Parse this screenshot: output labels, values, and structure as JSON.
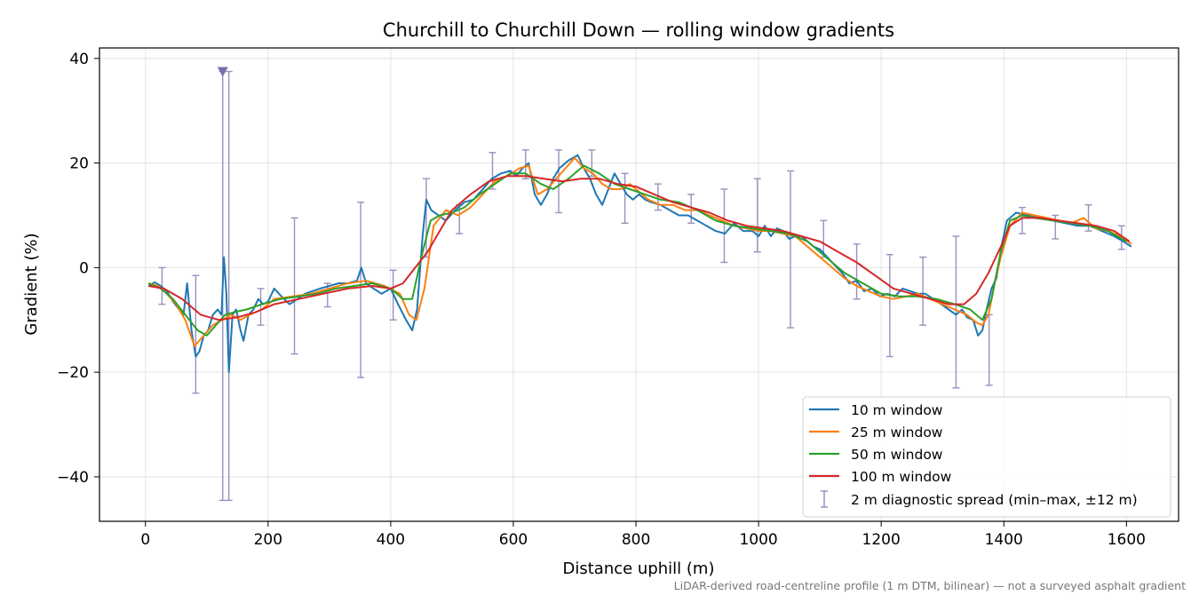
{
  "footnote": "LiDAR-derived road-centreline profile (1 m DTM, bilinear) — not a surveyed asphalt gradient",
  "colors": {
    "s10": "#1f77b4",
    "s25": "#ff7f0e",
    "s50": "#2ca02c",
    "s100": "#d62728",
    "diag": "#9b8fbe",
    "marker": "#7e6baa"
  },
  "chart_data": {
    "type": "line",
    "title": "Churchill to Churchill Down — rolling window gradients",
    "xlabel": "Distance uphill (m)",
    "ylabel": "Gradient (%)",
    "xlim": [
      -75,
      1685
    ],
    "ylim": [
      -48.5,
      42
    ],
    "xticks": [
      0,
      200,
      400,
      600,
      800,
      1000,
      1200,
      1400,
      1600
    ],
    "yticks": [
      -40,
      -20,
      0,
      20,
      40
    ],
    "grid": true,
    "legend_position": "lower-right",
    "series": [
      {
        "name": "10 m window",
        "key": "s10",
        "x": [
          5,
          15,
          25,
          35,
          45,
          55,
          62,
          68,
          75,
          82,
          88,
          95,
          102,
          110,
          118,
          124,
          128,
          132,
          136,
          142,
          148,
          155,
          160,
          168,
          176,
          184,
          192,
          200,
          210,
          222,
          235,
          248,
          260,
          272,
          285,
          300,
          315,
          330,
          345,
          352,
          360,
          372,
          385,
          400,
          412,
          425,
          435,
          443,
          452,
          458,
          466,
          478,
          490,
          505,
          520,
          535,
          550,
          565,
          580,
          595,
          605,
          615,
          625,
          635,
          645,
          655,
          665,
          675,
          690,
          705,
          715,
          725,
          735,
          745,
          755,
          765,
          775,
          785,
          795,
          805,
          815,
          825,
          840,
          855,
          870,
          885,
          900,
          915,
          930,
          945,
          960,
          975,
          990,
          1000,
          1010,
          1020,
          1030,
          1040,
          1050,
          1060,
          1070,
          1080,
          1090,
          1100,
          1112,
          1124,
          1136,
          1148,
          1160,
          1172,
          1185,
          1198,
          1210,
          1222,
          1235,
          1248,
          1260,
          1272,
          1285,
          1298,
          1310,
          1322,
          1332,
          1340,
          1350,
          1358,
          1365,
          1372,
          1380,
          1388,
          1396,
          1405,
          1420,
          1440,
          1460,
          1480,
          1500,
          1520,
          1540,
          1560,
          1580,
          1595,
          1608
        ],
        "y": [
          -3.5,
          -2.8,
          -3.5,
          -4.5,
          -6.5,
          -8,
          -9,
          -3,
          -12,
          -17,
          -16,
          -13,
          -12,
          -9,
          -8,
          -9,
          2,
          -5,
          -20,
          -9,
          -8,
          -12,
          -14,
          -9,
          -8,
          -6,
          -7,
          -6.5,
          -4,
          -5.5,
          -7,
          -6,
          -5,
          -4.5,
          -4,
          -3.5,
          -3,
          -3,
          -2.5,
          0,
          -3,
          -4,
          -5,
          -4,
          -7,
          -10,
          -12,
          -8,
          6,
          13,
          11,
          10,
          9,
          11,
          12.5,
          13,
          15,
          17,
          18,
          18.5,
          17.5,
          19,
          20,
          14,
          12,
          14,
          17,
          19,
          20.5,
          21.5,
          19,
          17,
          14,
          12,
          15,
          18,
          16,
          14,
          13,
          14,
          13,
          12.5,
          12,
          11,
          10,
          10,
          9,
          8,
          7,
          6.5,
          8.5,
          7,
          7,
          6,
          8,
          6,
          7.5,
          7,
          5.5,
          6,
          6,
          5,
          4,
          3.5,
          2,
          0.5,
          -1,
          -3,
          -2.5,
          -4.5,
          -4,
          -5.5,
          -5,
          -5.5,
          -4,
          -4.5,
          -5,
          -5,
          -6,
          -7,
          -8,
          -9,
          -8,
          -9.5,
          -10,
          -13,
          -12,
          -8,
          -4,
          -2,
          4,
          9,
          10.5,
          10,
          9.5,
          9,
          8.5,
          8,
          8,
          7,
          6,
          5,
          4
        ],
        "values": [
          -3.5,
          -2.8,
          -3.5,
          -4.5,
          -6.5,
          -8,
          -9,
          -3,
          -12,
          -17,
          -16,
          -13,
          -12,
          -9,
          -8,
          -9,
          2,
          -5,
          -20,
          -9,
          -8,
          -12,
          -14,
          -9,
          -8,
          -6,
          -7,
          -6.5,
          -4,
          -5.5,
          -7,
          -6,
          -5,
          -4.5,
          -4,
          -3.5,
          -3,
          -3,
          -2.5,
          0,
          -3,
          -4,
          -5,
          -4,
          -7,
          -10,
          -12,
          -8,
          6,
          13,
          11,
          10,
          9,
          11,
          12.5,
          13,
          15,
          17,
          18,
          18.5,
          17.5,
          19,
          20,
          14,
          12,
          14,
          17,
          19,
          20.5,
          21.5,
          19,
          17,
          14,
          12,
          15,
          18,
          16,
          14,
          13,
          14,
          13,
          12.5,
          12,
          11,
          10,
          10,
          9,
          8,
          7,
          6.5,
          8.5,
          7,
          7,
          6,
          8,
          6,
          7.5,
          7,
          5.5,
          6,
          6,
          5,
          4,
          3.5,
          2,
          0.5,
          -1,
          -3,
          -2.5,
          -4.5,
          -4,
          -5.5,
          -5,
          -5.5,
          -4,
          -4.5,
          -5,
          -5,
          -6,
          -7,
          -8,
          -9,
          -8,
          -9.5,
          -10,
          -13,
          -12,
          -8,
          -4,
          -2,
          4,
          9,
          10.5,
          10,
          9.5,
          9,
          8.5,
          8,
          8,
          7,
          6,
          5,
          4
        ]
      },
      {
        "name": "25 m window",
        "key": "s25",
        "x": [
          5,
          20,
          35,
          50,
          65,
          80,
          95,
          110,
          125,
          140,
          155,
          170,
          190,
          210,
          240,
          270,
          300,
          330,
          360,
          390,
          415,
          430,
          442,
          455,
          470,
          490,
          510,
          530,
          550,
          570,
          590,
          610,
          625,
          640,
          655,
          670,
          685,
          700,
          715,
          730,
          745,
          760,
          775,
          790,
          805,
          820,
          840,
          860,
          880,
          900,
          920,
          940,
          960,
          980,
          1000,
          1020,
          1040,
          1060,
          1080,
          1100,
          1120,
          1140,
          1160,
          1180,
          1200,
          1220,
          1240,
          1260,
          1280,
          1300,
          1320,
          1340,
          1355,
          1365,
          1375,
          1385,
          1395,
          1410,
          1430,
          1450,
          1470,
          1490,
          1510,
          1530,
          1550,
          1570,
          1590,
          1608
        ],
        "y": [
          -3,
          -3.5,
          -5,
          -7,
          -10,
          -15,
          -13,
          -11,
          -10,
          -9,
          -10,
          -9,
          -8,
          -6,
          -5.5,
          -5,
          -4,
          -3,
          -2.5,
          -3.5,
          -5,
          -9,
          -10,
          -4,
          8,
          11,
          10,
          11.5,
          14,
          16.5,
          17.5,
          19,
          19.5,
          14,
          15,
          17,
          19,
          21,
          19,
          18,
          16,
          15,
          15,
          16,
          14.5,
          13,
          12,
          12,
          11,
          11,
          10,
          9,
          8,
          7.5,
          7,
          7,
          6.5,
          6,
          4,
          2,
          0,
          -2,
          -3.5,
          -4.5,
          -5.5,
          -6,
          -5.5,
          -5,
          -6,
          -7,
          -8,
          -9,
          -10.5,
          -11,
          -9,
          -3,
          2,
          8,
          10.5,
          10,
          9.5,
          9,
          8.5,
          9.5,
          7.5,
          7,
          6,
          4.5
        ],
        "values": [
          -3,
          -3.5,
          -5,
          -7,
          -10,
          -15,
          -13,
          -11,
          -10,
          -9,
          -10,
          -9,
          -8,
          -6,
          -5.5,
          -5,
          -4,
          -3,
          -2.5,
          -3.5,
          -5,
          -9,
          -10,
          -4,
          8,
          11,
          10,
          11.5,
          14,
          16.5,
          17.5,
          19,
          19.5,
          14,
          15,
          17,
          19,
          21,
          19,
          18,
          16,
          15,
          15,
          16,
          14.5,
          13,
          12,
          12,
          11,
          11,
          10,
          9,
          8,
          7.5,
          7,
          7,
          6.5,
          6,
          4,
          2,
          0,
          -2,
          -3.5,
          -4.5,
          -5.5,
          -6,
          -5.5,
          -5,
          -6,
          -7,
          -8,
          -9,
          -10.5,
          -11,
          -9,
          -3,
          2,
          8,
          10.5,
          10,
          9.5,
          9,
          8.5,
          9.5,
          7.5,
          7,
          6,
          4.5
        ]
      },
      {
        "name": "50 m window",
        "key": "s50",
        "x": [
          5,
          25,
          45,
          65,
          85,
          100,
          115,
          130,
          145,
          165,
          190,
          220,
          250,
          280,
          310,
          340,
          370,
          400,
          420,
          435,
          450,
          465,
          480,
          500,
          520,
          545,
          570,
          595,
          620,
          645,
          665,
          690,
          715,
          740,
          765,
          790,
          815,
          840,
          870,
          900,
          930,
          960,
          990,
          1020,
          1050,
          1080,
          1110,
          1140,
          1170,
          1200,
          1230,
          1260,
          1290,
          1320,
          1345,
          1365,
          1380,
          1395,
          1410,
          1430,
          1450,
          1480,
          1510,
          1540,
          1570,
          1600
        ],
        "y": [
          -3,
          -4,
          -6,
          -9,
          -12,
          -13,
          -11,
          -9,
          -8.5,
          -8,
          -7,
          -6,
          -5.5,
          -5,
          -4,
          -3.5,
          -3,
          -4,
          -6,
          -6,
          2,
          9,
          10,
          10.5,
          11.5,
          14,
          16,
          18,
          18,
          16,
          15,
          17,
          19.5,
          18,
          16,
          15,
          14,
          13,
          12.5,
          11,
          9,
          8,
          7.5,
          7,
          6.5,
          5,
          2,
          -1,
          -3,
          -5,
          -5.5,
          -5.5,
          -6,
          -7,
          -8,
          -10,
          -6,
          3,
          9,
          10,
          9.5,
          9,
          8.5,
          8,
          7,
          5
        ],
        "values": [
          -3,
          -4,
          -6,
          -9,
          -12,
          -13,
          -11,
          -9,
          -8.5,
          -8,
          -7,
          -6,
          -5.5,
          -5,
          -4,
          -3.5,
          -3,
          -4,
          -6,
          -6,
          2,
          9,
          10,
          10.5,
          11.5,
          14,
          16,
          18,
          18,
          16,
          15,
          17,
          19.5,
          18,
          16,
          15,
          14,
          13,
          12.5,
          11,
          9,
          8,
          7.5,
          7,
          6.5,
          5,
          2,
          -1,
          -3,
          -5,
          -5.5,
          -5.5,
          -6,
          -7,
          -8,
          -10,
          -6,
          3,
          9,
          10,
          9.5,
          9,
          8.5,
          8,
          7,
          5
        ]
      },
      {
        "name": "100 m window",
        "key": "s100",
        "x": [
          5,
          30,
          60,
          90,
          120,
          150,
          180,
          210,
          250,
          290,
          330,
          370,
          400,
          420,
          440,
          460,
          480,
          500,
          530,
          560,
          590,
          620,
          650,
          680,
          710,
          740,
          770,
          800,
          830,
          860,
          890,
          920,
          950,
          980,
          1010,
          1040,
          1070,
          1100,
          1130,
          1160,
          1190,
          1220,
          1250,
          1280,
          1310,
          1335,
          1355,
          1375,
          1395,
          1410,
          1430,
          1460,
          1490,
          1520,
          1550,
          1580,
          1605
        ],
        "y": [
          -3.5,
          -4,
          -6,
          -9,
          -10,
          -9.5,
          -8.5,
          -7,
          -6,
          -5,
          -4,
          -3.5,
          -4,
          -3,
          0,
          3,
          7,
          11,
          14,
          16.5,
          17.5,
          17.5,
          17,
          16.5,
          17,
          17,
          16,
          15.5,
          14,
          12.5,
          11.5,
          10.5,
          9,
          8,
          7.5,
          7,
          6,
          5,
          3,
          1,
          -1.5,
          -4,
          -5,
          -6,
          -7,
          -7,
          -5,
          -1,
          4,
          8,
          9.5,
          9.5,
          9,
          8.5,
          8,
          7,
          5
        ],
        "values": [
          -3.5,
          -4,
          -6,
          -9,
          -10,
          -9.5,
          -8.5,
          -7,
          -6,
          -5,
          -4,
          -3.5,
          -4,
          -3,
          0,
          3,
          7,
          11,
          14,
          16.5,
          17.5,
          17.5,
          17,
          16.5,
          17,
          17,
          16,
          15.5,
          14,
          12.5,
          11.5,
          10.5,
          9,
          8,
          7.5,
          7,
          6,
          5,
          3,
          1,
          -1.5,
          -4,
          -5,
          -6,
          -7,
          -7,
          -5,
          -1,
          4,
          8,
          9.5,
          9.5,
          9,
          8.5,
          8,
          7,
          5
        ]
      }
    ],
    "diagnostic_spread": {
      "name": "2 m diagnostic spread (min–max, ±12 m)",
      "points": [
        {
          "x": 27,
          "low": -7,
          "high": 0
        },
        {
          "x": 82,
          "low": -24,
          "high": -1.5
        },
        {
          "x": 126,
          "low": -44.5,
          "high": 37.5
        },
        {
          "x": 136,
          "low": -44.5,
          "high": 37.5
        },
        {
          "x": 188,
          "low": -11,
          "high": -4
        },
        {
          "x": 243,
          "low": -16.5,
          "high": 9.5
        },
        {
          "x": 297,
          "low": -7.5,
          "high": -3
        },
        {
          "x": 351,
          "low": -21,
          "high": 12.5
        },
        {
          "x": 404,
          "low": -10,
          "high": -0.5
        },
        {
          "x": 458,
          "low": 2,
          "high": 17
        },
        {
          "x": 512,
          "low": 6.5,
          "high": 12
        },
        {
          "x": 566,
          "low": 15,
          "high": 22
        },
        {
          "x": 620,
          "low": 17,
          "high": 22.5
        },
        {
          "x": 674,
          "low": 10.5,
          "high": 22.5
        },
        {
          "x": 728,
          "low": 17.5,
          "high": 22.5
        },
        {
          "x": 782,
          "low": 8.5,
          "high": 18
        },
        {
          "x": 836,
          "low": 11,
          "high": 16
        },
        {
          "x": 890,
          "low": 8.5,
          "high": 14
        },
        {
          "x": 944,
          "low": 1,
          "high": 15
        },
        {
          "x": 998,
          "low": 3,
          "high": 17
        },
        {
          "x": 1052,
          "low": -11.5,
          "high": 18.5
        },
        {
          "x": 1106,
          "low": 2,
          "high": 9
        },
        {
          "x": 1160,
          "low": -6,
          "high": 4.5
        },
        {
          "x": 1214,
          "low": -17,
          "high": 2.5
        },
        {
          "x": 1268,
          "low": -11,
          "high": 2
        },
        {
          "x": 1322,
          "low": -23,
          "high": 6
        },
        {
          "x": 1376,
          "low": -22.5,
          "high": -9
        },
        {
          "x": 1430,
          "low": 6.5,
          "high": 11.5
        },
        {
          "x": 1484,
          "low": 5.5,
          "high": 10
        },
        {
          "x": 1538,
          "low": 7,
          "high": 12
        },
        {
          "x": 1592,
          "low": 3.5,
          "high": 8
        }
      ],
      "clipped_marker": {
        "x": 126,
        "y": 37.5
      }
    }
  }
}
